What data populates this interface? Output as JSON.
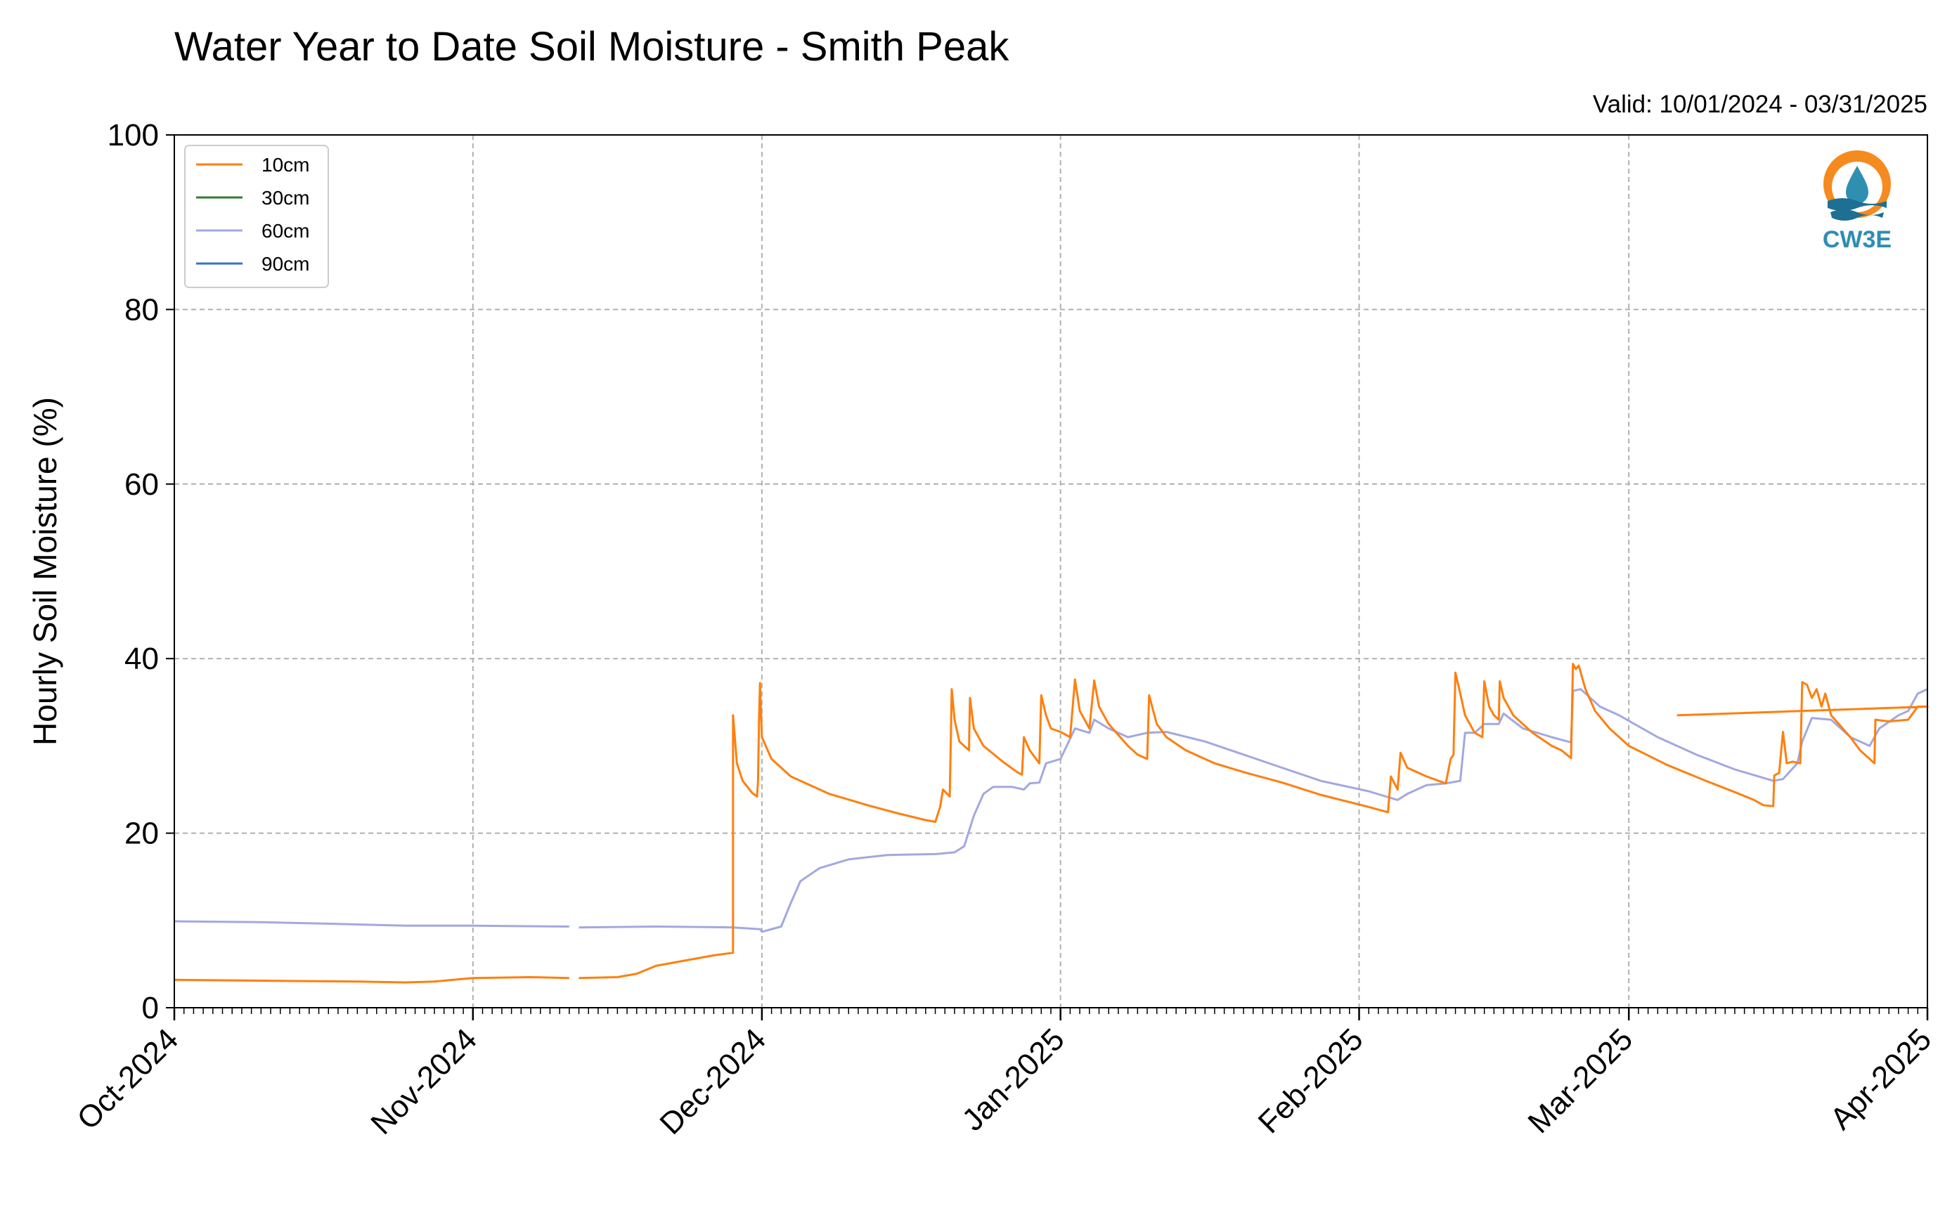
{
  "chart_data": {
    "type": "line",
    "title": "Water Year to Date Soil Moisture - Smith Peak",
    "subtitle": "Valid: 10/01/2024 - 03/31/2025",
    "xlabel": "",
    "ylabel": "Hourly Soil Moisture (%)",
    "ylim": [
      0,
      100
    ],
    "xlim": [
      "2024-10-01",
      "2025-04-01"
    ],
    "y_ticks": [
      "0",
      "20",
      "40",
      "60",
      "80",
      "100"
    ],
    "x_ticks": [
      {
        "date": "2024-10-01",
        "label": "Oct-2024"
      },
      {
        "date": "2024-11-01",
        "label": "Nov-2024"
      },
      {
        "date": "2024-12-01",
        "label": "Dec-2024"
      },
      {
        "date": "2025-01-01",
        "label": "Jan-2025"
      },
      {
        "date": "2025-02-01",
        "label": "Feb-2025"
      },
      {
        "date": "2025-03-01",
        "label": "Mar-2025"
      },
      {
        "date": "2025-04-01",
        "label": "Apr-2025"
      }
    ],
    "grid": true,
    "legend_position": "top-left",
    "series": [
      {
        "name": "10cm",
        "color": "#ff7f0e",
        "points": [
          [
            "2024-10-01",
            3.2
          ],
          [
            "2024-10-10",
            3.1
          ],
          [
            "2024-10-20",
            3.0
          ],
          [
            "2024-10-25",
            2.9
          ],
          [
            "2024-10-28",
            3.0
          ],
          [
            "2024-11-01",
            3.4
          ],
          [
            "2024-11-07",
            3.5
          ],
          [
            "2024-11-11",
            3.4
          ],
          null,
          [
            "2024-11-12",
            3.4
          ],
          [
            "2024-11-16",
            3.5
          ],
          [
            "2024-11-18",
            3.9
          ],
          [
            "2024-11-20",
            4.8
          ],
          [
            "2024-11-23",
            5.4
          ],
          [
            "2024-11-26",
            6.0
          ],
          [
            "2024-11-28",
            6.3
          ],
          [
            "2024-11-28",
            6.5
          ],
          [
            "2024-11-28",
            33.5
          ],
          [
            "2024-11-28.4",
            28.0
          ],
          [
            "2024-11-29",
            26.0
          ],
          [
            "2024-11-30",
            24.6
          ],
          [
            "2024-11-30.5",
            24.2
          ],
          [
            "2024-11-30.6",
            26.0
          ],
          [
            "2024-11-30.7",
            33.0
          ],
          [
            "2024-11-30.8",
            37.2
          ],
          [
            "2024-12-01",
            31.0
          ],
          [
            "2024-12-02",
            28.5
          ],
          [
            "2024-12-04",
            26.5
          ],
          [
            "2024-12-08",
            24.5
          ],
          [
            "2024-12-12",
            23.2
          ],
          [
            "2024-12-15",
            22.3
          ],
          [
            "2024-12-18",
            21.5
          ],
          [
            "2024-12-19",
            21.3
          ],
          [
            "2024-12-19.5",
            23.0
          ],
          [
            "2024-12-19.8",
            25.0
          ],
          [
            "2024-12-20.5",
            24.2
          ],
          [
            "2024-12-20.6",
            30.0
          ],
          [
            "2024-12-20.7",
            36.5
          ],
          [
            "2024-12-21",
            33.0
          ],
          [
            "2024-12-21.5",
            30.5
          ],
          [
            "2024-12-22.5",
            29.5
          ],
          [
            "2024-12-22.6",
            35.5
          ],
          [
            "2024-12-23",
            32.0
          ],
          [
            "2024-12-24",
            30.0
          ],
          [
            "2024-12-26",
            28.2
          ],
          [
            "2024-12-27.5",
            27.0
          ],
          [
            "2024-12-28",
            26.7
          ],
          [
            "2024-12-28.2",
            31.0
          ],
          [
            "2024-12-28.8",
            29.5
          ],
          [
            "2024-12-29.8",
            28.0
          ],
          [
            "2024-12-30",
            35.8
          ],
          [
            "2024-12-30.5",
            33.5
          ],
          [
            "2024-12-31",
            32.0
          ],
          [
            "2025-01-01",
            31.6
          ],
          [
            "2025-01-02",
            31.0
          ],
          [
            "2025-01-02.5",
            37.6
          ],
          [
            "2025-01-03",
            34.0
          ],
          [
            "2025-01-03.5",
            33.0
          ],
          [
            "2025-01-04",
            32.0
          ],
          [
            "2025-01-04.5",
            37.5
          ],
          [
            "2025-01-05",
            34.5
          ],
          [
            "2025-01-06",
            32.5
          ],
          [
            "2025-01-08",
            30.0
          ],
          [
            "2025-01-09",
            29.0
          ],
          [
            "2025-01-10",
            28.5
          ],
          [
            "2025-01-10.2",
            35.8
          ],
          [
            "2025-01-11",
            32.5
          ],
          [
            "2025-01-12",
            31.0
          ],
          [
            "2025-01-14",
            29.5
          ],
          [
            "2025-01-17",
            28.0
          ],
          [
            "2025-01-20",
            27.0
          ],
          [
            "2025-01-24",
            25.8
          ],
          [
            "2025-01-28",
            24.4
          ],
          [
            "2025-02-02",
            23.0
          ],
          [
            "2025-02-04",
            22.4
          ],
          [
            "2025-02-04.3",
            26.5
          ],
          [
            "2025-02-05",
            25.0
          ],
          [
            "2025-02-05.3",
            29.2
          ],
          [
            "2025-02-06",
            27.5
          ],
          [
            "2025-02-08",
            26.5
          ],
          [
            "2025-02-10",
            25.7
          ],
          [
            "2025-02-10.5",
            28.5
          ],
          [
            "2025-02-10.8",
            29.0
          ],
          [
            "2025-02-11",
            38.4
          ],
          [
            "2025-02-11.5",
            36.0
          ],
          [
            "2025-02-12",
            33.5
          ],
          [
            "2025-02-13",
            31.5
          ],
          [
            "2025-02-13.8",
            31.0
          ],
          [
            "2025-02-14",
            37.4
          ],
          [
            "2025-02-14.5",
            34.5
          ],
          [
            "2025-02-15",
            33.5
          ],
          [
            "2025-02-15.5",
            33.0
          ],
          [
            "2025-02-15.6",
            37.4
          ],
          [
            "2025-02-16",
            35.5
          ],
          [
            "2025-02-17",
            33.5
          ],
          [
            "2025-02-19",
            31.5
          ],
          [
            "2025-02-21",
            30.0
          ],
          [
            "2025-02-22",
            29.5
          ],
          [
            "2025-02-23",
            28.6
          ],
          [
            "2025-02-23.2",
            39.4
          ],
          [
            "2025-02-23.5",
            38.8
          ],
          [
            "2025-02-23.8",
            39.2
          ],
          [
            "2025-02-24.5",
            36.5
          ],
          [
            "2025-02-25.5",
            34.0
          ],
          [
            "2025-02-27",
            32.0
          ],
          [
            "2025-03-01",
            30.0
          ],
          [
            "2025-03-05",
            27.8
          ],
          [
            "2025-03-09",
            26.0
          ],
          [
            "2025-03-12",
            24.7
          ],
          [
            "2025-03-14",
            23.8
          ],
          [
            "2025-03-15",
            23.2
          ],
          [
            "2025-03-16",
            23.1
          ],
          [
            "2025-03-16.1",
            26.6
          ],
          [
            "2025-03-16.6",
            26.9
          ],
          [
            "2025-03-17",
            31.6
          ],
          [
            "2025-03-17.4",
            28.0
          ],
          [
            "2025-03-18",
            28.2
          ],
          [
            "2025-03-18.8",
            28.0
          ],
          [
            "2025-03-19",
            37.3
          ],
          [
            "2025-03-19.5",
            37.0
          ],
          [
            "2025-03-20",
            35.5
          ],
          [
            "2025-03-20.5",
            36.5
          ],
          [
            "2025-03-21",
            34.5
          ],
          [
            "2025-03-21.4",
            36.0
          ],
          [
            "2025-03-22",
            33.5
          ],
          [
            "2025-03-24",
            31.0
          ],
          [
            "2025-03-25",
            29.5
          ],
          [
            "2025-03-26",
            28.5
          ],
          [
            "2025-03-26.5",
            28.0
          ],
          [
            "2025-03-26.6",
            33.0
          ],
          [
            "2025-03-28",
            32.8
          ],
          [
            "2025-03-30",
            33.0
          ],
          [
            "2025-03-31",
            34.5
          ],
          [
            "2025-04-01",
            34.5
          ],
          [
            "2025-03-06",
            33.5
          ]
        ]
      },
      {
        "name": "30cm",
        "color": "#2e7d32",
        "points": []
      },
      {
        "name": "60cm",
        "color": "#a3a8e0",
        "points": [
          [
            "2024-10-01",
            9.9
          ],
          [
            "2024-10-10",
            9.8
          ],
          [
            "2024-10-18",
            9.6
          ],
          [
            "2024-10-25",
            9.4
          ],
          [
            "2024-11-01",
            9.4
          ],
          [
            "2024-11-11",
            9.3
          ],
          null,
          [
            "2024-11-12",
            9.2
          ],
          [
            "2024-11-20",
            9.3
          ],
          [
            "2024-11-28",
            9.2
          ],
          [
            "2024-11-30.8",
            9.0
          ],
          [
            "2024-12-01",
            8.7
          ],
          [
            "2024-12-03",
            9.3
          ],
          [
            "2024-12-04",
            12.0
          ],
          [
            "2024-12-05",
            14.5
          ],
          [
            "2024-12-07",
            16.0
          ],
          [
            "2024-12-10",
            17.0
          ],
          [
            "2024-12-14",
            17.5
          ],
          [
            "2024-12-19",
            17.6
          ],
          [
            "2024-12-21",
            17.8
          ],
          [
            "2024-12-22",
            18.5
          ],
          [
            "2024-12-23",
            22.0
          ],
          [
            "2024-12-24",
            24.5
          ],
          [
            "2024-12-25",
            25.3
          ],
          [
            "2024-12-27",
            25.3
          ],
          [
            "2024-12-28.2",
            25.0
          ],
          [
            "2024-12-28.8",
            25.7
          ],
          [
            "2024-12-29.8",
            25.8
          ],
          [
            "2024-12-30.5",
            28.0
          ],
          [
            "2025-01-01",
            28.5
          ],
          [
            "2025-01-02.5",
            32.0
          ],
          [
            "2025-01-04",
            31.5
          ],
          [
            "2025-01-04.5",
            33.0
          ],
          [
            "2025-01-06",
            32.0
          ],
          [
            "2025-01-08",
            31.0
          ],
          [
            "2025-01-10",
            31.5
          ],
          [
            "2025-01-12",
            31.6
          ],
          [
            "2025-01-16",
            30.5
          ],
          [
            "2025-01-20",
            29.0
          ],
          [
            "2025-01-24",
            27.5
          ],
          [
            "2025-01-28",
            26.0
          ],
          [
            "2025-02-02",
            24.8
          ],
          [
            "2025-02-05",
            23.8
          ],
          [
            "2025-02-06",
            24.5
          ],
          [
            "2025-02-08",
            25.5
          ],
          [
            "2025-02-10",
            25.7
          ],
          [
            "2025-02-11.5",
            26.0
          ],
          [
            "2025-02-12",
            31.5
          ],
          [
            "2025-02-13",
            31.5
          ],
          [
            "2025-02-14",
            32.5
          ],
          [
            "2025-02-15.5",
            32.5
          ],
          [
            "2025-02-16",
            33.7
          ],
          [
            "2025-02-18",
            32.0
          ],
          [
            "2025-02-21",
            31.0
          ],
          [
            "2025-02-23",
            30.4
          ],
          [
            "2025-02-23.2",
            36.3
          ],
          [
            "2025-02-24",
            36.5
          ],
          [
            "2025-02-26",
            34.5
          ],
          [
            "2025-02-28",
            33.5
          ],
          [
            "2025-03-04",
            31.0
          ],
          [
            "2025-03-08",
            29.0
          ],
          [
            "2025-03-12",
            27.3
          ],
          [
            "2025-03-16",
            26.0
          ],
          [
            "2025-03-17",
            26.2
          ],
          [
            "2025-03-18.5",
            28.0
          ],
          [
            "2025-03-19",
            30.5
          ],
          [
            "2025-03-20",
            33.2
          ],
          [
            "2025-03-22",
            33.0
          ],
          [
            "2025-03-24",
            31.0
          ],
          [
            "2025-03-26",
            30.0
          ],
          [
            "2025-03-27",
            32.0
          ],
          [
            "2025-03-29",
            33.5
          ],
          [
            "2025-03-30",
            34.0
          ],
          [
            "2025-03-31",
            36.0
          ],
          [
            "2025-04-01",
            36.5
          ]
        ]
      },
      {
        "name": "90cm",
        "color": "#3a70c8",
        "points": []
      }
    ]
  },
  "logo": {
    "text": "CW3E"
  }
}
